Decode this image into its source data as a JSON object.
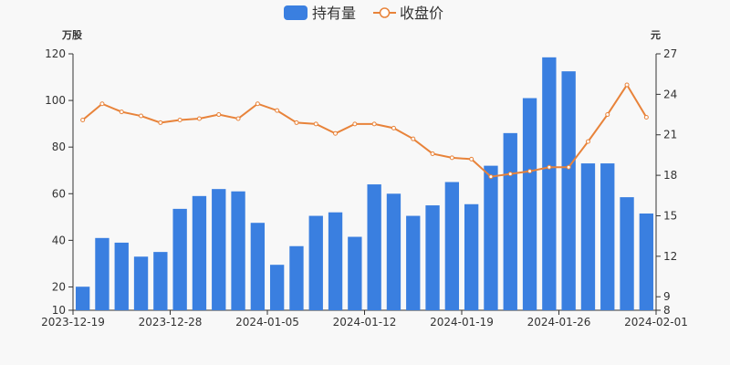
{
  "chart_data": {
    "type": "bar+line",
    "legend": {
      "placement": "top-center"
    },
    "y_left": {
      "unit": "万股",
      "ylim": [
        10,
        120
      ],
      "ticks": [
        10,
        20,
        40,
        60,
        80,
        100,
        120
      ]
    },
    "y_right": {
      "unit": "元",
      "ylim": [
        8,
        27
      ],
      "ticks": [
        8,
        9,
        12,
        15,
        18,
        21,
        24,
        27
      ]
    },
    "x_tick_labels": [
      "2023-12-19",
      "2023-12-28",
      "2024-01-05",
      "2024-01-12",
      "2024-01-19",
      "2024-01-26",
      "2024-02-01"
    ],
    "x_tick_indices": [
      0,
      5,
      10,
      15,
      20,
      25,
      30
    ],
    "bar_series": {
      "name": "持有量",
      "color": "#3a7fe0",
      "values": [
        20.1,
        41.0,
        39.0,
        33.0,
        35.0,
        53.5,
        59.0,
        62.0,
        61.0,
        47.5,
        29.5,
        37.5,
        50.5,
        52.0,
        41.5,
        64.0,
        60.0,
        50.5,
        55.0,
        65.0,
        55.5,
        72.0,
        86.0,
        101.0,
        118.5,
        112.5,
        73.0,
        73.0,
        58.5,
        51.5
      ]
    },
    "line_series": {
      "name": "收盘价",
      "color": "#e8833a",
      "values": [
        22.1,
        23.3,
        22.7,
        22.4,
        21.9,
        22.1,
        22.2,
        22.5,
        22.2,
        23.3,
        22.8,
        21.9,
        21.8,
        21.1,
        21.8,
        21.8,
        21.5,
        20.7,
        19.6,
        19.3,
        19.2,
        17.9,
        18.1,
        18.3,
        18.6,
        18.6,
        20.5,
        22.5,
        24.7,
        22.3
      ]
    }
  }
}
